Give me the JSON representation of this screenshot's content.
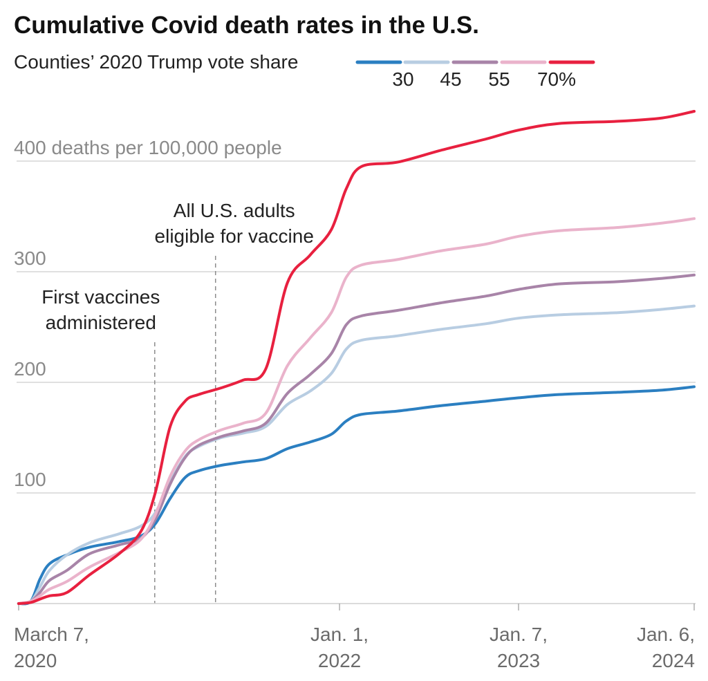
{
  "chart_data": {
    "type": "line",
    "title": "Cumulative Covid death rates in the U.S.",
    "subtitle": "Counties’ 2020 Trump vote share",
    "ylabel": "400 deaths per 100,000 people",
    "ylim": [
      0,
      445
    ],
    "yticks": [
      {
        "value": 100,
        "label": "100"
      },
      {
        "value": 200,
        "label": "200"
      },
      {
        "value": 300,
        "label": "300"
      },
      {
        "value": 400,
        "label": "400 deaths per 100,000 people"
      }
    ],
    "xlim": [
      "2020-03-07",
      "2024-01-06"
    ],
    "xticks": [
      {
        "date": "2020-03-07",
        "line1": "March 7,",
        "line2": "2020",
        "anchor": "start"
      },
      {
        "date": "2022-01-01",
        "line1": "Jan. 1,",
        "line2": "2022",
        "anchor": "middle"
      },
      {
        "date": "2023-01-07",
        "line1": "Jan. 7,",
        "line2": "2023",
        "anchor": "middle"
      },
      {
        "date": "2024-01-06",
        "line1": "Jan. 6,",
        "line2": "2024",
        "anchor": "end"
      }
    ],
    "legend": {
      "placement": "top-right",
      "labels": [
        "30",
        "45",
        "55",
        "70%"
      ]
    },
    "annotations": [
      {
        "date": "2020-12-14",
        "lines": [
          "First vaccines",
          "administered"
        ]
      },
      {
        "date": "2021-04-19",
        "lines": [
          "All U.S. adults",
          "eligible for vaccine"
        ]
      }
    ],
    "series": [
      {
        "name": "30",
        "color": "#2b7fc1",
        "points": [
          [
            "2020-03-07",
            0
          ],
          [
            "2020-04-01",
            2
          ],
          [
            "2020-04-20",
            22
          ],
          [
            "2020-05-10",
            36
          ],
          [
            "2020-06-15",
            44
          ],
          [
            "2020-08-01",
            51
          ],
          [
            "2020-10-01",
            56
          ],
          [
            "2020-11-15",
            61
          ],
          [
            "2020-12-15",
            72
          ],
          [
            "2021-01-15",
            95
          ],
          [
            "2021-02-15",
            114
          ],
          [
            "2021-03-15",
            120
          ],
          [
            "2021-05-01",
            125
          ],
          [
            "2021-06-15",
            128
          ],
          [
            "2021-08-01",
            131
          ],
          [
            "2021-09-15",
            140
          ],
          [
            "2021-11-01",
            146
          ],
          [
            "2021-12-15",
            153
          ],
          [
            "2022-01-15",
            165
          ],
          [
            "2022-02-15",
            171
          ],
          [
            "2022-05-01",
            174
          ],
          [
            "2022-08-01",
            179
          ],
          [
            "2022-11-01",
            183
          ],
          [
            "2023-01-07",
            186
          ],
          [
            "2023-04-01",
            189
          ],
          [
            "2023-08-01",
            191
          ],
          [
            "2023-11-01",
            193
          ],
          [
            "2024-01-06",
            196
          ]
        ]
      },
      {
        "name": "45",
        "color": "#b8cde2",
        "points": [
          [
            "2020-03-07",
            0
          ],
          [
            "2020-04-01",
            2
          ],
          [
            "2020-04-20",
            15
          ],
          [
            "2020-05-10",
            30
          ],
          [
            "2020-06-15",
            44
          ],
          [
            "2020-08-01",
            55
          ],
          [
            "2020-10-01",
            63
          ],
          [
            "2020-11-15",
            70
          ],
          [
            "2020-12-15",
            82
          ],
          [
            "2021-01-15",
            110
          ],
          [
            "2021-02-15",
            133
          ],
          [
            "2021-03-15",
            142
          ],
          [
            "2021-05-01",
            150
          ],
          [
            "2021-06-15",
            154
          ],
          [
            "2021-08-01",
            160
          ],
          [
            "2021-09-15",
            180
          ],
          [
            "2021-11-01",
            192
          ],
          [
            "2021-12-15",
            208
          ],
          [
            "2022-01-15",
            230
          ],
          [
            "2022-02-15",
            238
          ],
          [
            "2022-05-01",
            242
          ],
          [
            "2022-08-01",
            248
          ],
          [
            "2022-11-01",
            253
          ],
          [
            "2023-01-07",
            258
          ],
          [
            "2023-04-01",
            261
          ],
          [
            "2023-08-01",
            263
          ],
          [
            "2023-11-01",
            266
          ],
          [
            "2024-01-06",
            269
          ]
        ]
      },
      {
        "name": "55",
        "color": "#a884a8",
        "points": [
          [
            "2020-03-07",
            0
          ],
          [
            "2020-04-01",
            2
          ],
          [
            "2020-04-20",
            10
          ],
          [
            "2020-05-10",
            21
          ],
          [
            "2020-06-15",
            30
          ],
          [
            "2020-08-01",
            45
          ],
          [
            "2020-10-01",
            53
          ],
          [
            "2020-11-15",
            59
          ],
          [
            "2020-12-15",
            76
          ],
          [
            "2021-01-15",
            108
          ],
          [
            "2021-02-15",
            132
          ],
          [
            "2021-03-15",
            143
          ],
          [
            "2021-05-01",
            151
          ],
          [
            "2021-06-15",
            156
          ],
          [
            "2021-08-01",
            163
          ],
          [
            "2021-09-15",
            190
          ],
          [
            "2021-11-01",
            207
          ],
          [
            "2021-12-15",
            226
          ],
          [
            "2022-01-15",
            252
          ],
          [
            "2022-02-15",
            260
          ],
          [
            "2022-05-01",
            265
          ],
          [
            "2022-08-01",
            272
          ],
          [
            "2022-11-01",
            278
          ],
          [
            "2023-01-07",
            284
          ],
          [
            "2023-04-01",
            289
          ],
          [
            "2023-08-01",
            291
          ],
          [
            "2023-11-01",
            294
          ],
          [
            "2024-01-06",
            297
          ]
        ]
      },
      {
        "name": "70%",
        "color": "#eab3cb",
        "points": [
          [
            "2020-03-07",
            0
          ],
          [
            "2020-04-01",
            2
          ],
          [
            "2020-04-20",
            7
          ],
          [
            "2020-05-10",
            13
          ],
          [
            "2020-06-15",
            20
          ],
          [
            "2020-08-01",
            33
          ],
          [
            "2020-10-01",
            46
          ],
          [
            "2020-11-15",
            58
          ],
          [
            "2020-12-15",
            80
          ],
          [
            "2021-01-15",
            115
          ],
          [
            "2021-02-15",
            138
          ],
          [
            "2021-03-15",
            148
          ],
          [
            "2021-05-01",
            157
          ],
          [
            "2021-06-15",
            163
          ],
          [
            "2021-08-01",
            172
          ],
          [
            "2021-09-15",
            215
          ],
          [
            "2021-11-01",
            240
          ],
          [
            "2021-12-15",
            263
          ],
          [
            "2022-01-15",
            295
          ],
          [
            "2022-02-15",
            306
          ],
          [
            "2022-05-01",
            311
          ],
          [
            "2022-08-01",
            319
          ],
          [
            "2022-11-01",
            325
          ],
          [
            "2023-01-07",
            332
          ],
          [
            "2023-04-01",
            337
          ],
          [
            "2023-08-01",
            340
          ],
          [
            "2023-11-01",
            344
          ],
          [
            "2024-01-06",
            348
          ]
        ]
      },
      {
        "name": "",
        "color": "#e8203f",
        "points": [
          [
            "2020-03-07",
            0
          ],
          [
            "2020-04-01",
            1
          ],
          [
            "2020-04-20",
            4
          ],
          [
            "2020-05-10",
            7
          ],
          [
            "2020-06-15",
            10
          ],
          [
            "2020-08-01",
            26
          ],
          [
            "2020-10-01",
            45
          ],
          [
            "2020-11-15",
            65
          ],
          [
            "2020-12-15",
            100
          ],
          [
            "2021-01-15",
            160
          ],
          [
            "2021-02-15",
            183
          ],
          [
            "2021-03-15",
            189
          ],
          [
            "2021-05-01",
            195
          ],
          [
            "2021-06-15",
            202
          ],
          [
            "2021-08-01",
            212
          ],
          [
            "2021-09-15",
            290
          ],
          [
            "2021-11-01",
            315
          ],
          [
            "2021-12-15",
            338
          ],
          [
            "2022-01-15",
            375
          ],
          [
            "2022-02-15",
            395
          ],
          [
            "2022-05-01",
            399
          ],
          [
            "2022-08-01",
            410
          ],
          [
            "2022-11-01",
            420
          ],
          [
            "2023-01-07",
            428
          ],
          [
            "2023-04-01",
            434
          ],
          [
            "2023-08-01",
            436
          ],
          [
            "2023-11-01",
            439
          ],
          [
            "2024-01-06",
            445
          ]
        ]
      }
    ]
  }
}
